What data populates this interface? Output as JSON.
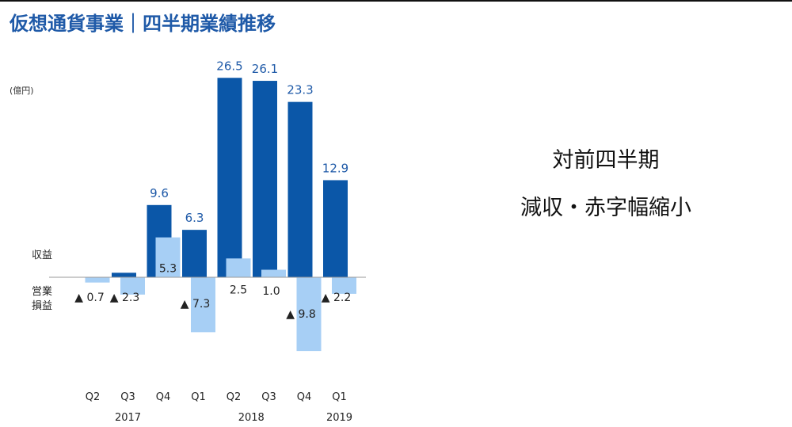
{
  "title": "仮想通貨事業｜四半期業績推移",
  "summary": {
    "line1": "対前四半期",
    "line2": "減収・赤字幅縮小"
  },
  "colors": {
    "revenue": "#0b57a8",
    "operating_profit": "#a7cff5",
    "title": "#1f5aa8",
    "revenue_label": "#1f5aa8"
  },
  "chart_data": {
    "type": "bar",
    "unit_label": "(億円)",
    "row_labels": {
      "revenue": "収益",
      "operating_profit": "営業\n損益"
    },
    "categories": [
      "Q2",
      "Q3",
      "Q4",
      "Q1",
      "Q2",
      "Q3",
      "Q4",
      "Q1"
    ],
    "years": [
      {
        "label": "2017",
        "from": 0,
        "to": 2
      },
      {
        "label": "2018",
        "from": 3,
        "to": 6
      },
      {
        "label": "2019",
        "from": 7,
        "to": 7
      }
    ],
    "series": [
      {
        "name": "収益",
        "values": [
          0.0,
          0.6,
          9.6,
          6.3,
          26.5,
          26.1,
          23.3,
          12.9
        ],
        "labels": [
          "",
          "",
          "9.6",
          "6.3",
          "26.5",
          "26.1",
          "23.3",
          "12.9"
        ]
      },
      {
        "name": "営業損益",
        "values": [
          -0.7,
          -2.3,
          5.3,
          -7.3,
          2.5,
          1.0,
          -9.8,
          -2.2
        ],
        "labels": [
          "▲ 0.7",
          "▲ 2.3",
          "5.3",
          "▲ 7.3",
          "2.5",
          "1.0",
          "▲ 9.8",
          "▲ 2.2"
        ]
      }
    ]
  }
}
